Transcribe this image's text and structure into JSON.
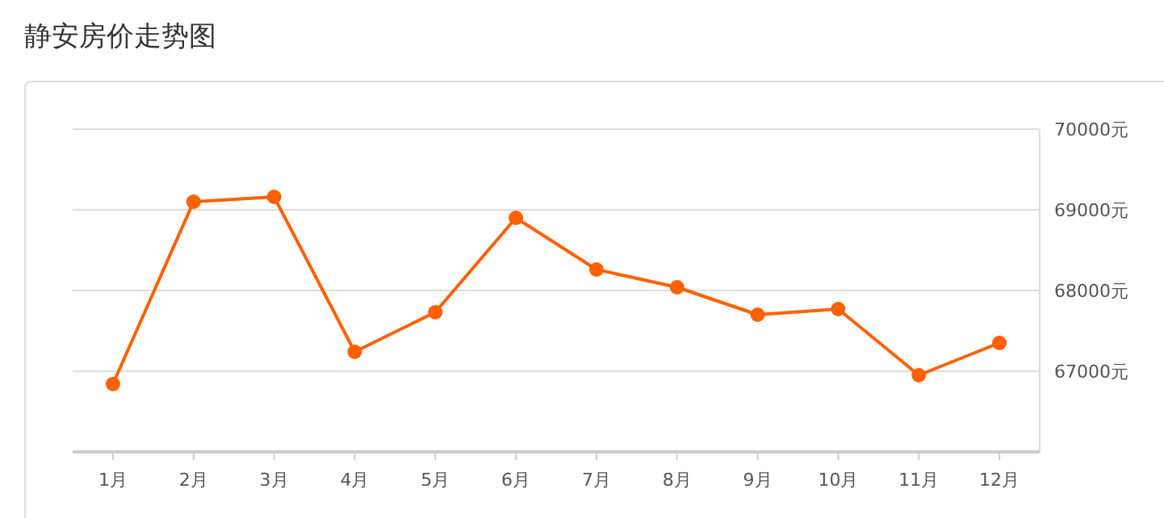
{
  "chart_data": {
    "type": "line",
    "title": "静安房价走势图",
    "categories": [
      "1月",
      "2月",
      "3月",
      "4月",
      "5月",
      "6月",
      "7月",
      "8月",
      "9月",
      "10月",
      "11月",
      "12月"
    ],
    "series": [
      {
        "color": "#ff6000",
        "values": [
          66840,
          69100,
          69160,
          67240,
          67730,
          68900,
          68260,
          68040,
          67700,
          67770,
          66950,
          67350
        ]
      }
    ],
    "ylim": [
      66000,
      70000
    ],
    "yticks": [
      {
        "value": 67000,
        "label": "67000元"
      },
      {
        "value": 68000,
        "label": "68000元"
      },
      {
        "value": 69000,
        "label": "69000元"
      },
      {
        "value": 70000,
        "label": "70000元"
      }
    ],
    "grid": "y",
    "marker": "circle",
    "line_style": "solid"
  }
}
